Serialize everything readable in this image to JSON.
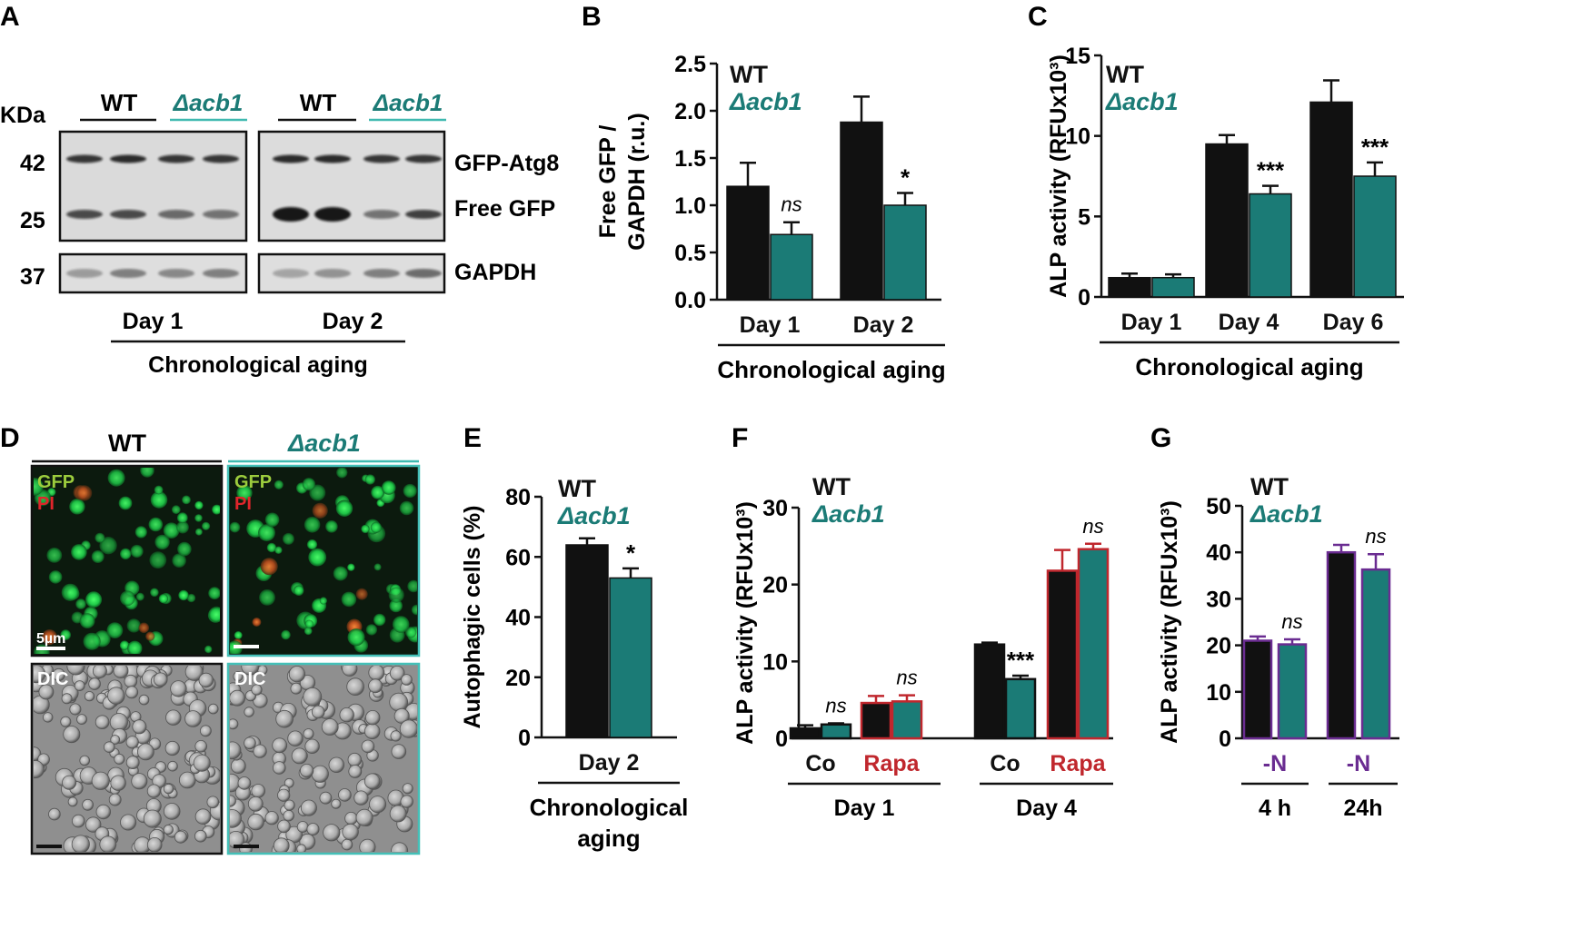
{
  "colors": {
    "wt": "#111111",
    "acb1": "#1b7b76",
    "acb1_text": "#1b7b76",
    "rapa": "#c0272d",
    "nitrogen": "#6a2c91",
    "cyan_box": "#44c0b8",
    "gfp": "#9ccc3d",
    "pi": "#e0252b"
  },
  "panels": {
    "A": "A",
    "B": "B",
    "C": "C",
    "D": "D",
    "E": "E",
    "F": "F",
    "G": "G"
  },
  "legend": {
    "wt": "WT",
    "acb1": "Δacb1"
  },
  "blot": {
    "kda_label": "KDa",
    "markers": [
      "42",
      "25",
      "37"
    ],
    "groups": [
      "WT",
      "Δacb1",
      "WT",
      "Δacb1"
    ],
    "bands": [
      "GFP-Atg8",
      "Free GFP",
      "GAPDH"
    ],
    "days": [
      "Day 1",
      "Day 2"
    ],
    "xlabel": "Chronological aging"
  },
  "micro": {
    "titles": [
      "WT",
      "Δacb1"
    ],
    "gfp": "GFP",
    "pi": "PI",
    "dic": "DIC",
    "scale": "5µm"
  },
  "chart_data": [
    {
      "panel": "B",
      "type": "bar",
      "ylabel": "Free GFP / GAPDH (r.u.)",
      "ylim": [
        0,
        2.5
      ],
      "yticks": [
        "0.0",
        "0.5",
        "1.0",
        "1.5",
        "2.0",
        "2.5"
      ],
      "categories": [
        "Day 1",
        "Day 2"
      ],
      "xlabel": "Chronological aging",
      "series": [
        {
          "name": "WT",
          "values": [
            1.2,
            1.88
          ],
          "errors": [
            0.25,
            0.27
          ]
        },
        {
          "name": "Δacb1",
          "values": [
            0.69,
            1.0
          ],
          "errors": [
            0.13,
            0.13
          ]
        }
      ],
      "annotations": [
        "ns",
        "*"
      ]
    },
    {
      "panel": "C",
      "type": "bar",
      "ylabel": "ALP activity (RFUx10³)",
      "ylim": [
        0,
        15
      ],
      "yticks": [
        "0",
        "5",
        "10",
        "15"
      ],
      "categories": [
        "Day 1",
        "Day 4",
        "Day 6"
      ],
      "xlabel": "Chronological aging",
      "series": [
        {
          "name": "WT",
          "values": [
            1.2,
            9.5,
            12.1
          ],
          "errors": [
            0.25,
            0.55,
            1.35
          ]
        },
        {
          "name": "Δacb1",
          "values": [
            1.2,
            6.4,
            7.5
          ],
          "errors": [
            0.2,
            0.5,
            0.85
          ]
        }
      ],
      "annotations": [
        "",
        "***",
        "***"
      ]
    },
    {
      "panel": "E",
      "type": "bar",
      "ylabel": "Autophagic cells (%)",
      "ylim": [
        0,
        80
      ],
      "yticks": [
        "0",
        "20",
        "40",
        "60",
        "80"
      ],
      "categories": [
        "Day 2"
      ],
      "xlabel": "Chronological aging",
      "series": [
        {
          "name": "WT",
          "values": [
            64
          ],
          "errors": [
            2.2
          ]
        },
        {
          "name": "Δacb1",
          "values": [
            53
          ],
          "errors": [
            3.2
          ]
        }
      ],
      "annotations": [
        "*"
      ]
    },
    {
      "panel": "F",
      "type": "bar",
      "ylabel": "ALP activity (RFUx10³)",
      "ylim": [
        0,
        30
      ],
      "yticks": [
        "0",
        "10",
        "20",
        "30"
      ],
      "categories": [
        "Co",
        "Rapa",
        "Co",
        "Rapa"
      ],
      "groups": [
        "Day 1",
        "Day 4"
      ],
      "series": [
        {
          "name": "WT",
          "values": [
            1.3,
            4.6,
            12.2,
            21.8
          ],
          "errors": [
            0.4,
            0.9,
            0.25,
            2.7
          ]
        },
        {
          "name": "Δacb1",
          "values": [
            1.8,
            4.8,
            7.7,
            24.6
          ],
          "errors": [
            0.15,
            0.8,
            0.45,
            0.7
          ]
        }
      ],
      "annotations": [
        "ns",
        "ns",
        "***",
        "ns"
      ]
    },
    {
      "panel": "G",
      "type": "bar",
      "ylabel": "ALP activity (RFUx10³)",
      "ylim": [
        0,
        50
      ],
      "yticks": [
        "0",
        "10",
        "20",
        "30",
        "40",
        "50"
      ],
      "categories": [
        "-N",
        "-N"
      ],
      "groups": [
        "4 h",
        "24h"
      ],
      "series": [
        {
          "name": "WT",
          "values": [
            21,
            40
          ],
          "errors": [
            0.9,
            1.6
          ]
        },
        {
          "name": "Δacb1",
          "values": [
            20.2,
            36.3
          ],
          "errors": [
            1.1,
            3.3
          ]
        }
      ],
      "annotations": [
        "ns",
        "ns"
      ]
    }
  ]
}
